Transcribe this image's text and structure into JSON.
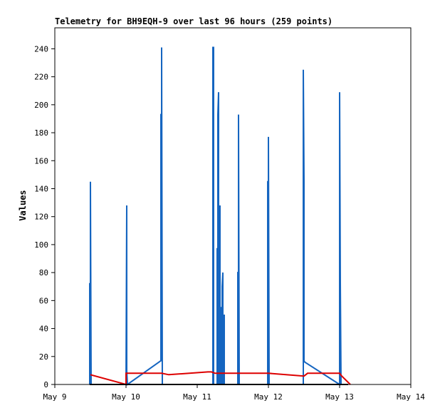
{
  "chart_data": {
    "type": "line",
    "title": "Telemetry for BH9EQH-9 over last 96 hours (259 points)",
    "xlabel": "",
    "ylabel": "Values",
    "xlim": [
      9,
      14
    ],
    "ylim": [
      0,
      255
    ],
    "x_ticks": [
      {
        "value": 9,
        "label": "May 9"
      },
      {
        "value": 10,
        "label": "May 10"
      },
      {
        "value": 11,
        "label": "May 11"
      },
      {
        "value": 12,
        "label": "May 12"
      },
      {
        "value": 13,
        "label": "May 13"
      },
      {
        "value": 14,
        "label": "May 14"
      }
    ],
    "y_ticks": [
      0,
      20,
      40,
      60,
      80,
      100,
      120,
      140,
      160,
      180,
      200,
      220,
      240
    ],
    "grid": false,
    "legend": "none",
    "series": [
      {
        "color": "#1565c0",
        "x": [
          9.49,
          9.49,
          9.5,
          9.5,
          9.51,
          10.0,
          10.01,
          10.01,
          10.02,
          10.49,
          10.49,
          10.5,
          10.5,
          10.51,
          11.22,
          11.22,
          11.23,
          11.23,
          11.28,
          11.28,
          11.29,
          11.29,
          11.3,
          11.3,
          11.31,
          11.31,
          11.32,
          11.32,
          11.33,
          11.33,
          11.34,
          11.34,
          11.35,
          11.35,
          11.36,
          11.36,
          11.37,
          11.37,
          11.38,
          11.38,
          11.39,
          11.57,
          11.57,
          11.58,
          11.58,
          11.59,
          11.99,
          11.99,
          12.0,
          12.0,
          12.01,
          12.0,
          12.49,
          12.49,
          12.5,
          12.5,
          12.51,
          13.0,
          13.0,
          13.01,
          13.01,
          13.02
        ],
        "y": [
          0,
          72,
          72,
          145,
          0,
          0,
          128,
          10,
          0,
          17,
          193,
          193,
          241,
          0,
          0,
          241,
          241,
          0,
          0,
          97,
          97,
          193,
          209,
          0,
          0,
          104,
          128,
          0,
          0,
          55,
          55,
          0,
          0,
          70,
          80,
          0,
          0,
          40,
          50,
          0,
          0,
          0,
          80,
          80,
          193,
          0,
          0,
          145,
          145,
          177,
          0,
          0,
          0,
          225,
          145,
          17,
          16,
          0,
          209,
          72,
          72,
          0
        ]
      },
      {
        "color": "#dd0000",
        "x": [
          9.5,
          10.0,
          10.0,
          10.5,
          10.5,
          10.6,
          11.15,
          11.2,
          11.25,
          11.3,
          11.5,
          11.9,
          12.0,
          12.5,
          12.55,
          13.0,
          13.03,
          13.15
        ],
        "y": [
          7,
          0,
          8,
          8,
          8,
          7,
          9,
          9,
          8,
          8,
          8,
          8,
          8,
          6,
          8,
          8,
          6,
          0
        ]
      },
      {
        "color": "#000000",
        "x": [
          9.49,
          13.12
        ],
        "y": [
          0,
          0
        ]
      }
    ]
  }
}
